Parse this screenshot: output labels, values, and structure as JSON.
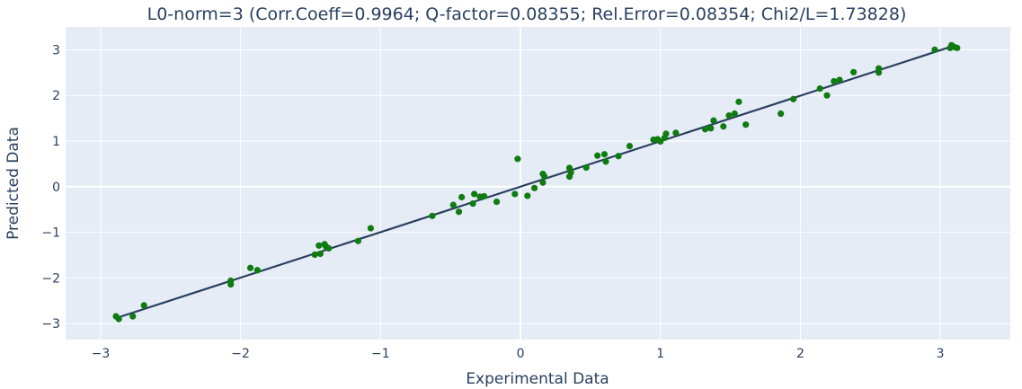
{
  "chart_data": {
    "type": "scatter",
    "title": "L0-norm=3 (Corr.Coeff=0.9964; Q-factor=0.08355; Rel.Error=0.08354; Chi2/L=1.73828)",
    "xlabel": "Experimental Data",
    "ylabel": "Predicted Data",
    "xlim": [
      -3.25,
      3.5
    ],
    "ylim": [
      -3.35,
      3.5
    ],
    "xticks": [
      -3,
      -2,
      -1,
      0,
      1,
      2,
      3
    ],
    "yticks": [
      -3,
      -2,
      -1,
      0,
      1,
      2,
      3
    ],
    "xtick_labels": [
      "−3",
      "−2",
      "−1",
      "0",
      "1",
      "2",
      "3"
    ],
    "ytick_labels": [
      "−3",
      "−2",
      "−1",
      "0",
      "1",
      "2",
      "3"
    ],
    "grid": true,
    "colors": {
      "background": "#e5ecf6",
      "grid": "#ffffff",
      "points": "#0f7b10",
      "fit_line": "#2a3f5f",
      "text": "#2a3f5f"
    },
    "fit_line": {
      "x": [
        -2.9,
        3.1
      ],
      "y": [
        -2.89,
        3.09
      ]
    },
    "points": [
      {
        "x": -2.89,
        "y": -2.84
      },
      {
        "x": -2.87,
        "y": -2.9
      },
      {
        "x": -2.77,
        "y": -2.84
      },
      {
        "x": -2.69,
        "y": -2.6
      },
      {
        "x": -2.07,
        "y": -2.14
      },
      {
        "x": -2.07,
        "y": -2.06
      },
      {
        "x": -1.93,
        "y": -1.78
      },
      {
        "x": -1.88,
        "y": -1.83
      },
      {
        "x": -1.47,
        "y": -1.49
      },
      {
        "x": -1.44,
        "y": -1.29
      },
      {
        "x": -1.43,
        "y": -1.47
      },
      {
        "x": -1.4,
        "y": -1.26
      },
      {
        "x": -1.39,
        "y": -1.31
      },
      {
        "x": -1.37,
        "y": -1.35
      },
      {
        "x": -1.16,
        "y": -1.19
      },
      {
        "x": -1.07,
        "y": -0.91
      },
      {
        "x": -0.63,
        "y": -0.64
      },
      {
        "x": -0.48,
        "y": -0.4
      },
      {
        "x": -0.44,
        "y": -0.55
      },
      {
        "x": -0.42,
        "y": -0.23
      },
      {
        "x": -0.34,
        "y": -0.37
      },
      {
        "x": -0.33,
        "y": -0.16
      },
      {
        "x": -0.29,
        "y": -0.22
      },
      {
        "x": -0.26,
        "y": -0.21
      },
      {
        "x": -0.17,
        "y": -0.33
      },
      {
        "x": -0.04,
        "y": -0.16
      },
      {
        "x": -0.02,
        "y": 0.61
      },
      {
        "x": 0.05,
        "y": -0.2
      },
      {
        "x": 0.1,
        "y": -0.03
      },
      {
        "x": 0.16,
        "y": 0.28
      },
      {
        "x": 0.16,
        "y": 0.09
      },
      {
        "x": 0.17,
        "y": 0.23
      },
      {
        "x": 0.35,
        "y": 0.41
      },
      {
        "x": 0.35,
        "y": 0.22
      },
      {
        "x": 0.36,
        "y": 0.31
      },
      {
        "x": 0.47,
        "y": 0.42
      },
      {
        "x": 0.55,
        "y": 0.68
      },
      {
        "x": 0.6,
        "y": 0.71
      },
      {
        "x": 0.61,
        "y": 0.55
      },
      {
        "x": 0.7,
        "y": 0.67
      },
      {
        "x": 0.78,
        "y": 0.89
      },
      {
        "x": 0.95,
        "y": 1.03
      },
      {
        "x": 0.98,
        "y": 1.04
      },
      {
        "x": 1.0,
        "y": 0.99
      },
      {
        "x": 1.03,
        "y": 1.07
      },
      {
        "x": 1.04,
        "y": 1.16
      },
      {
        "x": 1.11,
        "y": 1.18
      },
      {
        "x": 1.32,
        "y": 1.26
      },
      {
        "x": 1.36,
        "y": 1.28
      },
      {
        "x": 1.38,
        "y": 1.45
      },
      {
        "x": 1.45,
        "y": 1.32
      },
      {
        "x": 1.49,
        "y": 1.56
      },
      {
        "x": 1.53,
        "y": 1.6
      },
      {
        "x": 1.56,
        "y": 1.86
      },
      {
        "x": 1.61,
        "y": 1.36
      },
      {
        "x": 1.86,
        "y": 1.6
      },
      {
        "x": 1.95,
        "y": 1.92
      },
      {
        "x": 2.14,
        "y": 2.15
      },
      {
        "x": 2.19,
        "y": 2.0
      },
      {
        "x": 2.24,
        "y": 2.31
      },
      {
        "x": 2.28,
        "y": 2.34
      },
      {
        "x": 2.38,
        "y": 2.51
      },
      {
        "x": 2.56,
        "y": 2.5
      },
      {
        "x": 2.56,
        "y": 2.59
      },
      {
        "x": 2.96,
        "y": 3.0
      },
      {
        "x": 3.07,
        "y": 3.04
      },
      {
        "x": 3.08,
        "y": 3.1
      },
      {
        "x": 3.1,
        "y": 3.06
      },
      {
        "x": 3.12,
        "y": 3.04
      }
    ]
  }
}
